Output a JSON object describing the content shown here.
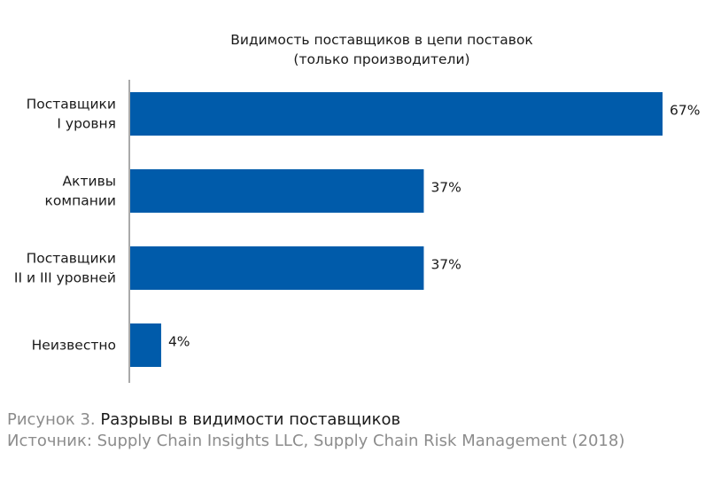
{
  "chart_data": {
    "type": "bar",
    "orientation": "horizontal",
    "title": "Видимость поставщиков в цепи поставок",
    "subtitle": "(только производители)",
    "categories": [
      [
        "Поставщики",
        "I уровня"
      ],
      [
        "Активы",
        "компании"
      ],
      [
        "Поставщики",
        "II и III уровней"
      ],
      [
        "Неизвестно"
      ]
    ],
    "values": [
      67,
      37,
      37,
      4
    ],
    "value_labels": [
      "67%",
      "37%",
      "37%",
      "4%"
    ],
    "unit": "%",
    "xlim": [
      0,
      67
    ],
    "bar_color": "#005BAA",
    "grid": false,
    "legend": "none"
  },
  "caption": {
    "figure_number": "Рисунок 3.",
    "figure_title": "Разрывы в видимости поставщиков",
    "source": "Источник: Supply Chain Insights LLC, Supply Chain Risk Management (2018)"
  }
}
